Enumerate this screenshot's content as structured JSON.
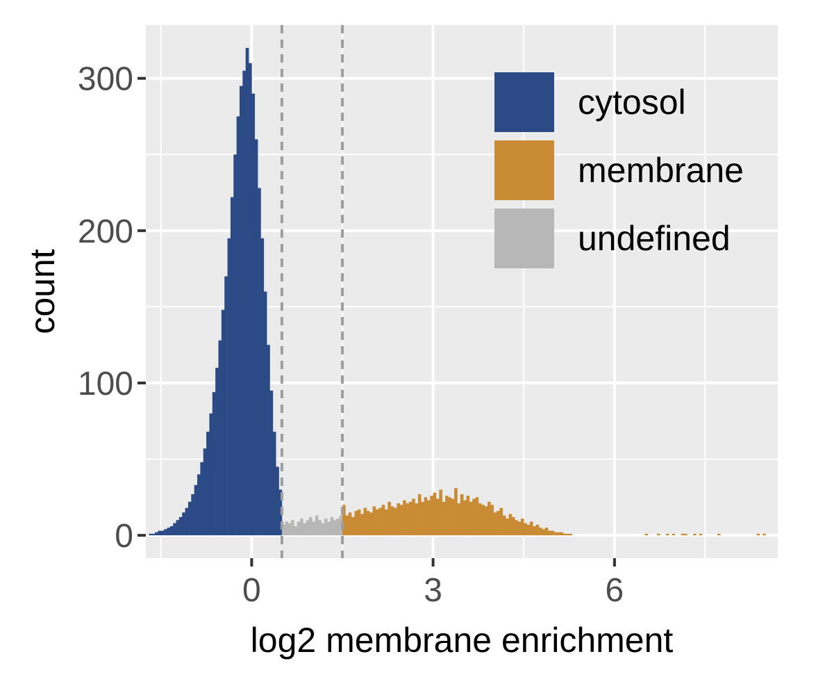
{
  "chart_data": {
    "type": "bar",
    "subtype": "histogram",
    "title": "",
    "xlabel": "log2 membrane enrichment",
    "ylabel": "count",
    "xlim": [
      -1.75,
      8.7
    ],
    "ylim": [
      -15,
      335
    ],
    "x_ticks": [
      0,
      3,
      6
    ],
    "x_tick_labels": [
      "0",
      "3",
      "6"
    ],
    "y_ticks": [
      0,
      100,
      200,
      300
    ],
    "y_tick_labels": [
      "0",
      "100",
      "200",
      "300"
    ],
    "bin_width": 0.05,
    "grid": true,
    "threshold_lines": [
      0.5,
      1.5
    ],
    "legend": {
      "placement": "top-right",
      "items": [
        {
          "label": "cytosol",
          "color": "#2b4a86"
        },
        {
          "label": "membrane",
          "color": "#c98b34"
        },
        {
          "label": "undefined",
          "color": "#b7b7b7"
        }
      ]
    },
    "panel_background": "#ebebeb",
    "series": [
      {
        "name": "cytosol",
        "color": "#2b4a86",
        "range": [
          -2.0,
          0.5
        ],
        "bins_start": -2.0,
        "values": [
          0,
          0,
          0,
          0,
          0,
          0,
          1,
          1,
          2,
          3,
          3,
          4,
          5,
          6,
          8,
          10,
          12,
          15,
          18,
          22,
          27,
          33,
          40,
          48,
          57,
          68,
          80,
          94,
          110,
          128,
          148,
          170,
          195,
          222,
          250,
          275,
          295,
          305,
          320,
          310,
          290,
          260,
          228,
          195,
          160,
          125,
          95,
          68,
          45,
          30
        ]
      },
      {
        "name": "undefined",
        "color": "#b7b7b7",
        "range": [
          0.5,
          1.5
        ],
        "bins_start": 0.5,
        "values": [
          7,
          9,
          8,
          10,
          6,
          9,
          11,
          8,
          10,
          12,
          9,
          13,
          10,
          8,
          11,
          9,
          12,
          10,
          11,
          13
        ]
      },
      {
        "name": "membrane",
        "color": "#c98b34",
        "range": [
          1.5,
          8.5
        ],
        "bins_start": 1.5,
        "values": [
          20,
          13,
          15,
          12,
          16,
          17,
          14,
          18,
          16,
          15,
          19,
          17,
          18,
          20,
          17,
          22,
          19,
          18,
          21,
          20,
          23,
          21,
          22,
          24,
          21,
          27,
          22,
          25,
          23,
          26,
          28,
          24,
          30,
          22,
          26,
          25,
          24,
          31,
          21,
          27,
          23,
          26,
          22,
          24,
          25,
          21,
          20,
          19,
          22,
          20,
          15,
          16,
          18,
          13,
          11,
          14,
          12,
          10,
          9,
          11,
          8,
          7,
          9,
          6,
          7,
          5,
          4,
          5,
          3,
          3,
          2,
          2,
          2,
          1,
          1,
          1,
          0,
          0,
          0,
          0,
          0,
          0,
          0,
          0,
          0,
          0,
          0,
          0,
          0,
          0,
          0,
          0,
          0,
          0,
          0,
          0,
          0,
          0,
          0,
          0,
          1,
          0,
          0,
          0,
          1,
          0,
          0,
          1,
          0,
          1,
          0,
          0,
          1,
          1,
          0,
          0,
          1,
          0,
          1,
          0,
          0,
          0,
          0,
          0,
          1,
          0,
          0,
          0,
          0,
          0,
          0,
          0,
          0,
          0,
          0,
          0,
          0,
          1,
          0,
          1
        ]
      }
    ]
  }
}
